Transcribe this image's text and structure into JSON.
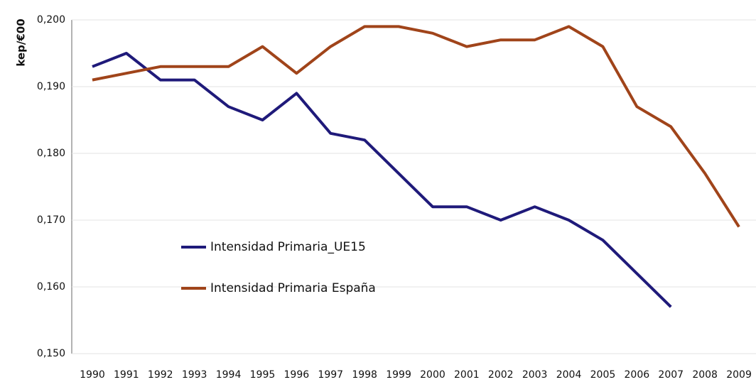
{
  "chart_data": {
    "type": "line",
    "y_label": "kep/€00",
    "categories": [
      "1990",
      "1991",
      "1992",
      "1993",
      "1994",
      "1995",
      "1996",
      "1997",
      "1998",
      "1999",
      "2000",
      "2001",
      "2002",
      "2003",
      "2004",
      "2005",
      "2006",
      "2007",
      "2008",
      "2009"
    ],
    "series": [
      {
        "name": "Intensidad Primaria_UE15",
        "color": "#1f1a7a",
        "values": [
          0.193,
          0.195,
          0.191,
          0.191,
          0.187,
          0.185,
          0.189,
          0.183,
          0.182,
          0.177,
          0.172,
          0.172,
          0.17,
          0.172,
          0.17,
          0.167,
          0.162,
          0.157,
          null,
          null
        ]
      },
      {
        "name": "Intensidad Primaria España",
        "color": "#a0441a",
        "values": [
          0.191,
          0.192,
          0.193,
          0.193,
          0.193,
          0.196,
          0.192,
          0.196,
          0.199,
          0.199,
          0.198,
          0.196,
          0.197,
          0.197,
          0.199,
          0.196,
          0.187,
          0.184,
          0.177,
          0.169
        ]
      }
    ],
    "ylim": [
      0.15,
      0.2
    ],
    "yticks": [
      {
        "value": 0.15,
        "label": "0,150"
      },
      {
        "value": 0.16,
        "label": "0,160"
      },
      {
        "value": 0.17,
        "label": "0,170"
      },
      {
        "value": 0.18,
        "label": "0,180"
      },
      {
        "value": 0.19,
        "label": "0,190"
      },
      {
        "value": 0.2,
        "label": "0,200"
      }
    ],
    "grid": true
  }
}
